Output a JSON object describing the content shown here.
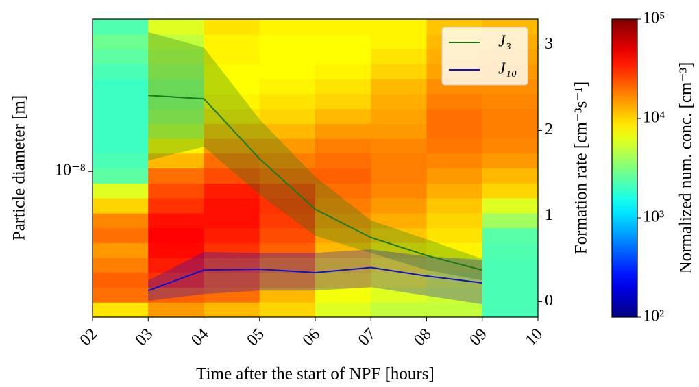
{
  "chart_data": {
    "type": "heatmap-lines",
    "xlabel": "Time after the start of NPF [hours]",
    "ylabel": "Particle diameter [m]",
    "y2label": "Formation rate [cm⁻³s⁻¹]",
    "colorbar_label": "Normalized num. conc. [cm⁻³]",
    "xlim": [
      2,
      10
    ],
    "xticks": [
      {
        "value": 2,
        "label": "02"
      },
      {
        "value": 3,
        "label": "03"
      },
      {
        "value": 4,
        "label": "04"
      },
      {
        "value": 5,
        "label": "05"
      },
      {
        "value": 6,
        "label": "06"
      },
      {
        "value": 7,
        "label": "07"
      },
      {
        "value": 8,
        "label": "08"
      },
      {
        "value": 9,
        "label": "09"
      },
      {
        "value": 10,
        "label": "10"
      }
    ],
    "yscale": "log",
    "ylim": [
      4.6e-09,
      2.25e-08
    ],
    "yticks": [
      {
        "value": 1e-08,
        "label": "10⁻⁸"
      }
    ],
    "y2lim": [
      -0.18,
      3.3
    ],
    "y2ticks": [
      0,
      1,
      2,
      3
    ],
    "colormap": "jet",
    "cscale": "log",
    "clim": [
      100,
      100000
    ],
    "cticks": [
      {
        "value": 100,
        "label": "10²"
      },
      {
        "value": 1000,
        "label": "10³"
      },
      {
        "value": 10000,
        "label": "10⁴"
      },
      {
        "value": 100000,
        "label": "10⁵"
      }
    ],
    "legend": "upper right",
    "heatmap": {
      "x_edges": [
        2,
        3,
        4,
        5,
        6,
        7,
        8,
        9,
        10
      ],
      "y_edges": [
        4.6e-09,
        4.98e-09,
        5.39e-09,
        5.84e-09,
        6.32e-09,
        6.84e-09,
        7.4e-09,
        8.01e-09,
        8.68e-09,
        9.39e-09,
        1.017e-08,
        1.101e-08,
        1.192e-08,
        1.29e-08,
        1.397e-08,
        1.512e-08,
        1.637e-08,
        1.772e-08,
        1.919e-08,
        2.077e-08,
        2.25e-08
      ],
      "values": [
        [
          9000,
          20000,
          22000,
          18000,
          15000,
          20000,
          17000,
          10000,
          6000,
          2500,
          2200,
          2000,
          2000,
          2000,
          2000,
          2000,
          2200,
          2500,
          2800,
          2300
        ],
        [
          15000,
          22000,
          30000,
          35000,
          40000,
          42000,
          38000,
          30000,
          25000,
          20000,
          12000,
          8000,
          5000,
          4000,
          3500,
          3500,
          4000,
          4500,
          5000,
          6000
        ],
        [
          12000,
          20000,
          22000,
          25000,
          30000,
          35000,
          38000,
          38000,
          35000,
          25000,
          20000,
          15000,
          12000,
          9000,
          8000,
          7500,
          7500,
          8000,
          8000,
          9000
        ],
        [
          10000,
          12000,
          15000,
          18000,
          22000,
          25000,
          28000,
          30000,
          28000,
          22000,
          18000,
          15000,
          12000,
          10000,
          9000,
          8000,
          7500,
          7500,
          7500,
          8000
        ],
        [
          6000,
          7000,
          9000,
          10000,
          12000,
          14000,
          16000,
          18000,
          20000,
          22000,
          20000,
          18000,
          15000,
          12000,
          10000,
          9000,
          8000,
          7500,
          7500,
          8000
        ],
        [
          5000,
          6000,
          7000,
          8000,
          9000,
          11000,
          13000,
          15000,
          17000,
          18000,
          18000,
          17000,
          15000,
          14000,
          13000,
          12000,
          10000,
          9000,
          8000,
          8000
        ],
        [
          5000,
          5500,
          6000,
          7000,
          8000,
          9000,
          10000,
          11000,
          13000,
          15000,
          17000,
          19000,
          20000,
          20000,
          18000,
          16000,
          14000,
          13000,
          12000,
          11000
        ],
        [
          2200,
          2200,
          2200,
          2200,
          2300,
          2400,
          4000,
          6000,
          10000,
          12000,
          15000,
          17000,
          18000,
          18000,
          17000,
          16000,
          15000,
          14000,
          13000,
          12000
        ]
      ]
    },
    "x": [
      3,
      4,
      5,
      6,
      7,
      8,
      9
    ],
    "series": [
      {
        "name": "J₃",
        "color": "#1a7a1a",
        "axis": "y2",
        "values": [
          2.41,
          2.37,
          1.67,
          1.08,
          0.75,
          0.54,
          0.37
        ],
        "upper": [
          3.15,
          2.97,
          2.13,
          1.46,
          0.95,
          0.73,
          0.5
        ],
        "lower": [
          1.65,
          1.81,
          1.25,
          0.77,
          0.57,
          0.37,
          0.25
        ]
      },
      {
        "name": "J₁₀",
        "color": "#1010d0",
        "axis": "y2",
        "values": [
          0.13,
          0.37,
          0.38,
          0.34,
          0.4,
          0.3,
          0.22
        ],
        "upper": [
          0.25,
          0.58,
          0.57,
          0.57,
          0.61,
          0.53,
          0.49
        ],
        "lower": [
          0.01,
          0.09,
          0.13,
          0.13,
          0.17,
          0.07,
          -0.03
        ]
      }
    ]
  }
}
